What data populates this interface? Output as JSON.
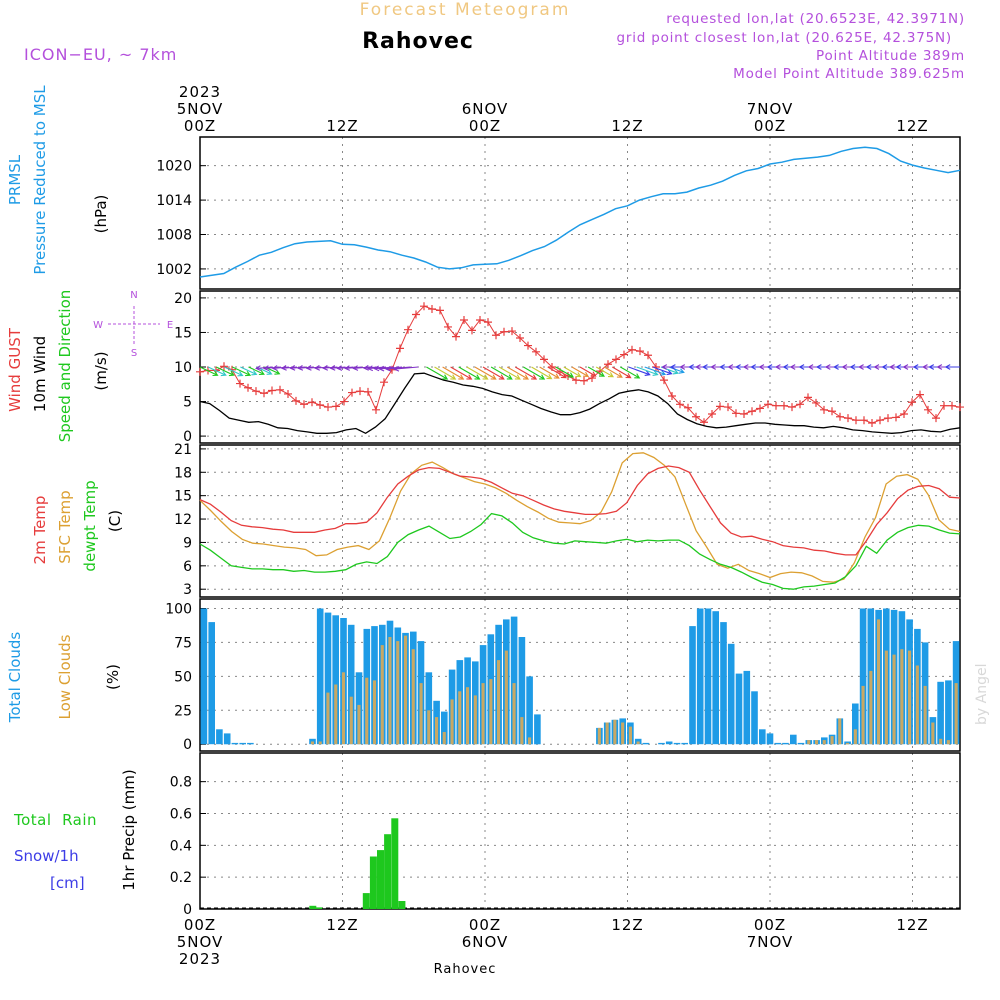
{
  "header": {
    "product": "Forecast Meteogram",
    "location": "Rahovec",
    "model": "ICON−EU, ~ 7km",
    "requested": "requested lon,lat (20.6523E, 42.3971N)",
    "gridpoint": "grid point closest lon,lat (20.625E, 42.375N)",
    "point_alt": "Point Altitude 389m",
    "model_alt": "Model Point Altitude 389.625m",
    "footer": "Rahovec",
    "watermark": "by Angel"
  },
  "colors": {
    "pressure": "#1e9be6",
    "gust": "#e63c3c",
    "wind": "#000000",
    "temp": "#e63c3c",
    "sfc": "#dca032",
    "dew": "#1ec81e",
    "total_clouds": "#1e9be6",
    "low_clouds": "#c8a864",
    "rain": "#1ec81e",
    "snow": "#3c3ce6",
    "header_purple": "#b450dc",
    "header_orange": "#f0c882"
  },
  "chart_data": {
    "type": "meteogram",
    "time": {
      "hours": 64,
      "top_labels": [
        {
          "h": 0,
          "lines": [
            "2023",
            "5NOV",
            "00Z"
          ]
        },
        {
          "h": 12,
          "lines": [
            "12Z"
          ]
        },
        {
          "h": 24,
          "lines": [
            "6NOV",
            "00Z"
          ]
        },
        {
          "h": 36,
          "lines": [
            "12Z"
          ]
        },
        {
          "h": 48,
          "lines": [
            "7NOV",
            "00Z"
          ]
        },
        {
          "h": 60,
          "lines": [
            "12Z"
          ]
        }
      ],
      "bottom_labels": [
        {
          "h": 0,
          "lines": [
            "00Z",
            "5NOV",
            "2023"
          ]
        },
        {
          "h": 12,
          "lines": [
            "12Z"
          ]
        },
        {
          "h": 24,
          "lines": [
            "00Z",
            "6NOV"
          ]
        },
        {
          "h": 36,
          "lines": [
            "12Z"
          ]
        },
        {
          "h": 48,
          "lines": [
            "00Z",
            "7NOV"
          ]
        },
        {
          "h": 60,
          "lines": [
            "12Z"
          ]
        }
      ]
    },
    "pressure": {
      "title_lines": [
        "PRMSL",
        "Pressure Reduced to MSL"
      ],
      "unit": "(hPa)",
      "ylim": [
        998.5,
        1025
      ],
      "yticks": [
        1002,
        1008,
        1014,
        1020
      ],
      "values": [
        1000.6,
        1000.9,
        1001.2,
        1002.3,
        1003.3,
        1004.4,
        1004.9,
        1005.7,
        1006.4,
        1006.7,
        1006.8,
        1006.9,
        1006.3,
        1006.2,
        1005.8,
        1005.3,
        1005.0,
        1004.4,
        1003.9,
        1003.2,
        1002.3,
        1002.0,
        1002.2,
        1002.7,
        1002.8,
        1002.9,
        1003.5,
        1004.3,
        1005.2,
        1005.9,
        1007.0,
        1008.4,
        1009.7,
        1010.6,
        1011.5,
        1012.5,
        1013.0,
        1014.0,
        1014.6,
        1015.1,
        1015.1,
        1015.4,
        1016.1,
        1016.6,
        1017.3,
        1018.3,
        1019.1,
        1019.5,
        1020.3,
        1020.6,
        1021.1,
        1021.3,
        1021.5,
        1021.8,
        1022.5,
        1023.0,
        1023.2,
        1023.0,
        1022.1,
        1020.8,
        1020.1,
        1019.6,
        1019.2,
        1018.8,
        1019.2
      ],
      "y_data_label": "hPa"
    },
    "wind": {
      "title_lines": [
        "Wind GUST",
        "10m Wind",
        "Speed and Direction"
      ],
      "unit": "(m/s)",
      "ylim": [
        -1,
        21
      ],
      "yticks": [
        0,
        5,
        10,
        15,
        20
      ],
      "gust": [
        9.3,
        9.5,
        9.5,
        10.1,
        9.6,
        7.6,
        7.0,
        6.5,
        6.2,
        6.6,
        6.7,
        6.1,
        5.1,
        4.6,
        4.9,
        4.5,
        4.2,
        4.3,
        5.0,
        6.3,
        6.5,
        6.4,
        3.8,
        7.8,
        9.6,
        12.7,
        15.4,
        17.6,
        18.8,
        18.4,
        18.2,
        15.8,
        14.4,
        16.8,
        15.3,
        16.8,
        16.5,
        14.6,
        15.1,
        15.2,
        14.2,
        13.1,
        12.2,
        11.1,
        10.0,
        9.3,
        8.7,
        8.1,
        8.0,
        8.4,
        9.4,
        10.4,
        11.1,
        11.8,
        12.5,
        12.3,
        11.7,
        10.0,
        8.1,
        5.8,
        4.6,
        4.1,
        2.8,
        2.0,
        3.2,
        4.3,
        4.2,
        3.3,
        3.2,
        3.6,
        4.0,
        4.6,
        4.4,
        4.4,
        4.2,
        4.6,
        5.6,
        4.8,
        3.8,
        3.6,
        2.8,
        2.6,
        2.3,
        2.3,
        1.9,
        2.3,
        2.6,
        2.7,
        3.2,
        4.9,
        6.0,
        3.8,
        2.6,
        4.4,
        4.4,
        4.2
      ],
      "wind_x_step": 0.667,
      "wind": [
        5.0,
        4.7,
        3.7,
        2.6,
        2.3,
        2.0,
        2.1,
        1.7,
        1.2,
        1.1,
        0.8,
        0.6,
        0.4,
        0.4,
        0.5,
        0.9,
        1.1,
        0.4,
        1.3,
        2.5,
        4.7,
        6.9,
        9.0,
        9.1,
        8.6,
        8.1,
        7.8,
        7.4,
        7.2,
        6.9,
        6.4,
        6.0,
        5.8,
        5.2,
        4.6,
        4.0,
        3.5,
        3.1,
        3.1,
        3.4,
        3.9,
        4.7,
        5.4,
        6.2,
        6.5,
        6.7,
        6.4,
        5.8,
        4.7,
        3.2,
        2.4,
        1.8,
        1.4,
        1.2,
        1.3,
        1.5,
        1.7,
        1.9,
        1.9,
        1.7,
        1.6,
        1.5,
        1.5,
        1.3,
        1.2,
        1.4,
        1.2,
        0.9,
        0.8,
        0.6,
        0.5,
        0.4,
        0.5,
        0.8,
        0.9,
        0.7,
        0.6,
        1.0,
        1.2
      ],
      "wind_x_values": [
        0,
        1,
        2,
        3,
        4,
        5,
        6,
        7,
        8,
        9,
        10,
        11,
        12,
        13,
        14,
        15,
        16,
        17,
        18,
        19,
        20,
        21,
        22,
        23,
        24,
        25,
        26,
        27,
        28,
        29,
        30,
        31,
        32,
        33,
        34,
        35,
        36,
        37,
        38,
        39,
        40,
        41,
        42,
        43,
        44,
        45,
        46,
        47,
        48,
        49,
        50,
        51,
        52,
        53,
        54,
        55,
        56,
        57,
        58,
        59,
        60,
        61,
        62,
        63,
        64
      ],
      "direction_legend": {
        "n": "N",
        "s": "S",
        "w": "W",
        "e": "E"
      }
    },
    "temperature": {
      "title_lines": [
        "2m Temp",
        "SFC Temp",
        "dewpt Temp"
      ],
      "unit": "(C)",
      "ylim": [
        2,
        21.5
      ],
      "yticks": [
        3,
        6,
        9,
        12,
        15,
        18,
        21
      ],
      "t2m": [
        14.5,
        13.9,
        12.9,
        11.8,
        11.2,
        11.0,
        10.9,
        10.7,
        10.6,
        10.3,
        10.3,
        10.3,
        10.6,
        10.8,
        11.4,
        11.4,
        11.6,
        12.8,
        14.8,
        16.5,
        17.5,
        18.3,
        18.6,
        18.5,
        18.0,
        17.5,
        17.4,
        17.2,
        16.7,
        16.0,
        15.3,
        15.0,
        14.4,
        13.8,
        13.3,
        13.0,
        12.8,
        12.6,
        12.6,
        12.7,
        13.0,
        14.1,
        16.3,
        17.8,
        18.5,
        18.8,
        18.6,
        18.0,
        15.7,
        13.6,
        11.5,
        10.2,
        9.7,
        9.8,
        9.4,
        9.1,
        8.6,
        8.4,
        8.3,
        8.0,
        7.9,
        7.6,
        7.4,
        7.4,
        9.2,
        11.3,
        12.8,
        14.6,
        15.7,
        16.2,
        16.3,
        15.9,
        14.8,
        14.7
      ],
      "sfc": [
        14.4,
        13.1,
        11.7,
        10.4,
        9.4,
        8.9,
        8.8,
        8.6,
        8.4,
        8.3,
        8.1,
        7.3,
        7.4,
        8.1,
        8.4,
        8.6,
        8.1,
        9.2,
        12.2,
        15.6,
        17.8,
        18.9,
        19.3,
        18.6,
        17.8,
        17.3,
        16.8,
        16.5,
        16.0,
        15.3,
        14.4,
        13.6,
        12.9,
        12.1,
        11.6,
        11.5,
        11.4,
        11.8,
        12.9,
        15.5,
        19.2,
        20.4,
        20.5,
        19.9,
        18.9,
        17.4,
        13.9,
        10.5,
        8.4,
        6.2,
        5.7,
        6.2,
        5.4,
        5.0,
        4.5,
        5.0,
        5.2,
        5.1,
        4.7,
        4.0,
        3.9,
        4.3,
        6.4,
        9.7,
        12.2,
        16.5,
        17.5,
        17.7,
        17.1,
        15.1,
        11.9,
        10.7,
        10.4
      ],
      "dew": [
        8.8,
        8.0,
        7.0,
        6.0,
        5.8,
        5.6,
        5.6,
        5.5,
        5.5,
        5.3,
        5.4,
        5.2,
        5.2,
        5.3,
        5.5,
        6.2,
        6.5,
        6.3,
        7.2,
        9.0,
        10.0,
        10.6,
        11.1,
        10.3,
        9.5,
        9.7,
        10.4,
        11.3,
        12.7,
        12.4,
        11.5,
        10.3,
        9.6,
        9.2,
        8.9,
        8.8,
        9.2,
        9.1,
        9.0,
        8.9,
        9.2,
        9.4,
        9.1,
        9.3,
        9.2,
        9.3,
        9.3,
        8.6,
        7.5,
        6.8,
        6.2,
        5.8,
        5.2,
        4.5,
        3.9,
        3.6,
        3.1,
        3.0,
        3.3,
        3.4,
        3.6,
        3.8,
        4.6,
        6.0,
        8.5,
        7.6,
        9.3,
        10.3,
        10.9,
        11.2,
        11.1,
        10.6,
        10.2,
        10.1
      ],
      "x_step_t2m": 0.877,
      "x_step_sfc": 0.889,
      "x_step_dew": 0.877
    },
    "clouds": {
      "title_lines": [
        "Total Clouds",
        "Low Clouds"
      ],
      "unit": "(%)",
      "ylim": [
        -5,
        107
      ],
      "yticks": [
        0,
        25,
        50,
        75,
        100
      ],
      "total": [
        100,
        90,
        11,
        8,
        1,
        1,
        1,
        0,
        0,
        0,
        0,
        0,
        0,
        0,
        4,
        100,
        97,
        95,
        93,
        88,
        53,
        85,
        87,
        88,
        91,
        86,
        82,
        83,
        76,
        53,
        32,
        24,
        55,
        62,
        64,
        61,
        73,
        81,
        88,
        92,
        94,
        79,
        50,
        22,
        0,
        0,
        0,
        0,
        0,
        0,
        0,
        12,
        16,
        18,
        19,
        16,
        4,
        1,
        0,
        1,
        2,
        1,
        1,
        87,
        100,
        100,
        98,
        90,
        74,
        52,
        54,
        39,
        11,
        8,
        1,
        1,
        7,
        1,
        3,
        3,
        5,
        7,
        19,
        2,
        30,
        100,
        100,
        99,
        100,
        99,
        98,
        92,
        85,
        75,
        20,
        46,
        47,
        76
      ],
      "low": [
        0,
        0,
        0,
        0,
        0,
        0,
        0,
        0,
        0,
        0,
        0,
        0,
        0,
        0,
        2,
        2,
        38,
        44,
        53,
        35,
        29,
        49,
        47,
        73,
        79,
        76,
        80,
        70,
        45,
        25,
        20,
        9,
        33,
        39,
        42,
        36,
        45,
        48,
        62,
        69,
        45,
        20,
        5,
        0,
        0,
        0,
        0,
        0,
        0,
        0,
        0,
        12,
        16,
        18,
        16,
        13,
        2,
        0,
        0,
        0,
        0,
        0,
        0,
        0,
        0,
        0,
        0,
        0,
        0,
        0,
        0,
        0,
        0,
        0,
        0,
        0,
        0,
        0,
        3,
        3,
        3,
        6,
        19,
        1,
        11,
        43,
        54,
        92,
        69,
        66,
        70,
        69,
        58,
        43,
        16,
        4,
        3,
        45
      ]
    },
    "precip": {
      "title_lines": [
        "Total  Rain",
        "Snow/1h",
        "[cm]"
      ],
      "ylabel": "1hr Precip (mm)",
      "ylim": [
        0,
        0.98
      ],
      "yticks": [
        0,
        0.2,
        0.4,
        0.6,
        0.8
      ],
      "ytick_labels": [
        "0",
        "0.2",
        "0.4",
        "0.6",
        "0.8"
      ],
      "rain": [
        {
          "h": 9.5,
          "v": 0.02
        },
        {
          "h": 10.0,
          "v": 0.01
        },
        {
          "h": 14.0,
          "v": 0.1
        },
        {
          "h": 14.6,
          "v": 0.33
        },
        {
          "h": 15.2,
          "v": 0.37
        },
        {
          "h": 15.8,
          "v": 0.47
        },
        {
          "h": 16.4,
          "v": 0.57
        },
        {
          "h": 17.0,
          "v": 0.05
        }
      ]
    }
  }
}
